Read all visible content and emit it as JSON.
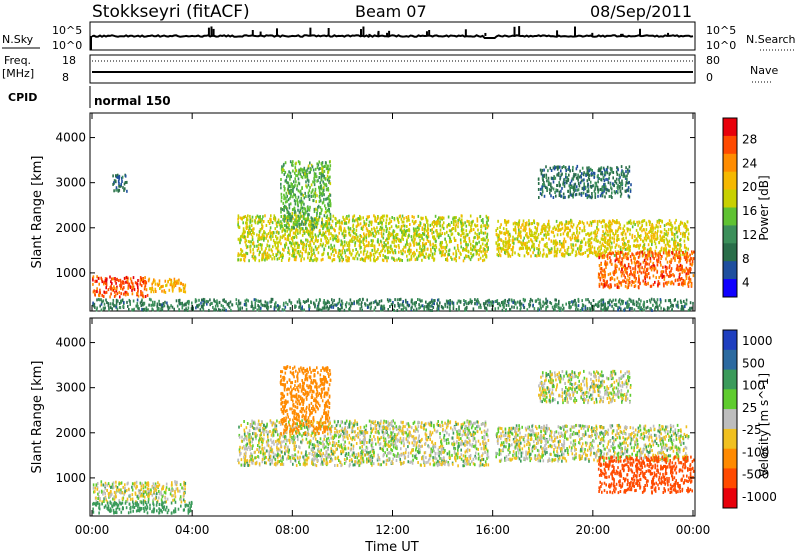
{
  "header": {
    "station": "Stokkseyri (fitACF)",
    "beam": "Beam 07",
    "date": "08/Sep/2011"
  },
  "panels": {
    "nsky": {
      "left_label": "N.Sky",
      "right_label": "N.Search",
      "top_tick": "10^5",
      "bottom_tick": "10^0",
      "right_top_tick": "10^5",
      "right_bottom_tick": "10^0"
    },
    "freq": {
      "left_label_1": "Freq.",
      "left_label_2": "[MHz]",
      "right_label": "Nave",
      "left_ticks": [
        "18",
        "8"
      ],
      "right_ticks": [
        "80",
        "0"
      ]
    },
    "cpid": {
      "label": "CPID",
      "mode": "normal 150"
    }
  },
  "x_axis": {
    "title": "Time UT",
    "ticks": [
      "00:00",
      "04:00",
      "08:00",
      "12:00",
      "16:00",
      "20:00",
      "00:00"
    ]
  },
  "power_colorbar": {
    "label": "Power [dB]",
    "ticks": [
      "28",
      "24",
      "20",
      "16",
      "12",
      "8",
      "4"
    ],
    "colors": [
      "#e8000b",
      "#ff4a00",
      "#ff8c00",
      "#f5b800",
      "#c8d000",
      "#5fc232",
      "#3c8f5a",
      "#2a6e4a",
      "#1f4f9e",
      "#1000ff"
    ]
  },
  "velocity_colorbar": {
    "label": "Velocity [m s^-1]",
    "ticks": [
      "1000",
      "500",
      "100",
      "25",
      "-25",
      "-100",
      "-500",
      "-1000"
    ],
    "colors": [
      "#1f3fbf",
      "#2c6aa0",
      "#3a9a5a",
      "#5fcc2e",
      "#bdbdbd",
      "#f0c020",
      "#ff8a00",
      "#ff4a00",
      "#e8000b"
    ]
  },
  "chart_data": [
    {
      "type": "heatmap",
      "title": "",
      "xlabel": "Time UT",
      "ylabel": "Slant Range [km]",
      "x_range_hours": [
        0,
        24
      ],
      "ylim": [
        200,
        4500
      ],
      "yticks": [
        1000,
        2000,
        3000,
        4000
      ],
      "colorbar": "Power [dB]",
      "scatter_regions": [
        {
          "t0": 0.0,
          "t1": 2.2,
          "r0": 500,
          "r1": 950,
          "level": 27
        },
        {
          "t0": 2.2,
          "t1": 3.7,
          "r0": 600,
          "r1": 900,
          "level": 22
        },
        {
          "t0": 0.0,
          "t1": 24.0,
          "r0": 200,
          "r1": 450,
          "level": 10
        },
        {
          "t0": 0.8,
          "t1": 1.4,
          "r0": 2800,
          "r1": 3200,
          "level": 8
        },
        {
          "t0": 5.8,
          "t1": 15.8,
          "r0": 1300,
          "r1": 2300,
          "level": 18
        },
        {
          "t0": 16.1,
          "t1": 23.8,
          "r0": 1400,
          "r1": 2200,
          "level": 19
        },
        {
          "t0": 17.8,
          "t1": 21.5,
          "r0": 2700,
          "r1": 3400,
          "level": 9
        },
        {
          "t0": 20.2,
          "t1": 24.0,
          "r0": 700,
          "r1": 1500,
          "level": 26
        },
        {
          "t0": 7.5,
          "t1": 9.5,
          "r0": 2000,
          "r1": 3500,
          "level": 14
        }
      ]
    },
    {
      "type": "heatmap",
      "title": "",
      "xlabel": "Time UT",
      "ylabel": "Slant Range [km]",
      "x_range_hours": [
        0,
        24
      ],
      "ylim": [
        200,
        4500
      ],
      "yticks": [
        1000,
        2000,
        3000,
        4000
      ],
      "colorbar": "Velocity [m s^-1]",
      "scatter_regions": [
        {
          "t0": 0.0,
          "t1": 3.7,
          "r0": 500,
          "r1": 950,
          "velocity": 0
        },
        {
          "t0": 0.0,
          "t1": 4.0,
          "r0": 250,
          "r1": 500,
          "velocity": 150
        },
        {
          "t0": 5.8,
          "t1": 15.8,
          "r0": 1300,
          "r1": 2300,
          "velocity": 0
        },
        {
          "t0": 16.1,
          "t1": 23.8,
          "r0": 1400,
          "r1": 2200,
          "velocity": 0
        },
        {
          "t0": 17.8,
          "t1": 21.5,
          "r0": 2700,
          "r1": 3400,
          "velocity": 0
        },
        {
          "t0": 20.2,
          "t1": 24.0,
          "r0": 700,
          "r1": 1500,
          "velocity": -700
        },
        {
          "t0": 7.5,
          "t1": 9.5,
          "r0": 2000,
          "r1": 3500,
          "velocity": -200
        }
      ]
    }
  ]
}
